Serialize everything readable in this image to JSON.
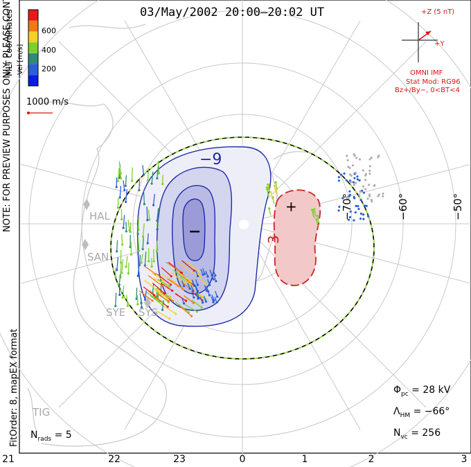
{
  "title": "03/May/2002 20:00–20:02 UT",
  "scale": {
    "label": "Vel [m/s]",
    "ticks": [
      "600",
      "400",
      "200"
    ],
    "colors": [
      "#0a1be6",
      "#2b5fd6",
      "#2f8a7a",
      "#7ad12e",
      "#f2d12a",
      "#f07a1a",
      "#e81a1a"
    ]
  },
  "coord_note": "MLT coordinates",
  "vector_legend": "1000 m/s",
  "preview_note": "NOTE: FOR PREVIEW PURPOSES ONLY. PLEASE CONTACT VT-SD STAFF FOR VERIFICATION.",
  "fit_note": "FitOrder: 8, mapEX format",
  "imf": {
    "z_label": "+Z (5 nT)",
    "y_label": "+Y",
    "source": "OMNI IMF",
    "model_line1": "Stat Mod: RG96",
    "model_line2": "Bz+/By−, 0<BT<4"
  },
  "stations": [
    "HAL",
    "SAN",
    "SYE",
    "SYS",
    "TIG"
  ],
  "lat_labels": [
    "−70°",
    "−60°",
    "−50°"
  ],
  "mlt_labels": [
    "21",
    "22",
    "23",
    "0",
    "1",
    "2",
    "3"
  ],
  "contours": {
    "neg_label": "−9",
    "pos_label": "3",
    "neg_sign": "−",
    "pos_sign": "+"
  },
  "stats": {
    "nrads_label": "N",
    "nrads_sub": "rads",
    "nrads_value": "= 5",
    "phi_label": "Φ",
    "phi_sub": "pc",
    "phi_value": "= 28 kV",
    "lambda_label": "Λ",
    "lambda_sub": "HM",
    "lambda_value": "= −66°",
    "nvc_label": "N",
    "nvc_sub": "vc",
    "nvc_value": "= 256"
  },
  "colors": {
    "neg_contour": "#1c2aa8",
    "neg_fill": "#b6b8e3",
    "pos_contour": "#cc2222",
    "pos_fill": "#f2c8c8",
    "boundary_green": "#9ee04a",
    "grid": "#c8c8c8",
    "land": "#cfcfcf"
  }
}
